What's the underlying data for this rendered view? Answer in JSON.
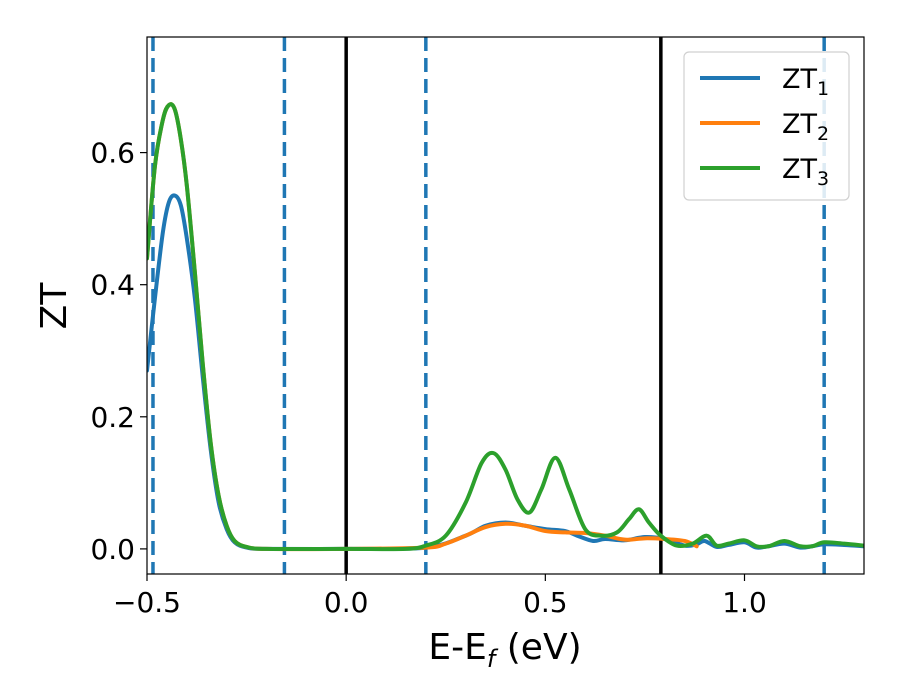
{
  "chart_data": {
    "type": "line",
    "xlabel": "E-E",
    "xlabel_sub": "f",
    "xlabel_unit": " (eV)",
    "ylabel": "ZT",
    "xlim": [
      -0.5,
      1.3
    ],
    "ylim": [
      -0.038,
      0.775
    ],
    "x_ticks": [
      -0.5,
      0.0,
      0.5,
      1.0
    ],
    "x_tick_labels": [
      "−0.5",
      "0.0",
      "0.5",
      "1.0"
    ],
    "y_ticks": [
      0.0,
      0.2,
      0.4,
      0.6
    ],
    "y_tick_labels": [
      "0.0",
      "0.2",
      "0.4",
      "0.6"
    ],
    "grid": false,
    "legend_position": "top-right",
    "vlines_solid": [
      0.0,
      0.79
    ],
    "vlines_dashed": [
      -0.485,
      -0.155,
      0.2,
      1.2
    ],
    "series": [
      {
        "name": "ZT",
        "sub": "1",
        "color": "#1f77b4",
        "x": [
          -0.5,
          -0.48,
          -0.46,
          -0.445,
          -0.43,
          -0.415,
          -0.4,
          -0.38,
          -0.36,
          -0.34,
          -0.32,
          -0.3,
          -0.28,
          -0.25,
          -0.2,
          0.0,
          0.2,
          0.3,
          0.35,
          0.4,
          0.45,
          0.5,
          0.55,
          0.58,
          0.62,
          0.65,
          0.7,
          0.75,
          0.8,
          0.85,
          0.88,
          0.9,
          0.93,
          0.96,
          1.0,
          1.03,
          1.06,
          1.1,
          1.14,
          1.17,
          1.2,
          1.25,
          1.3
        ],
        "y": [
          0.27,
          0.38,
          0.48,
          0.525,
          0.535,
          0.52,
          0.47,
          0.38,
          0.26,
          0.15,
          0.07,
          0.03,
          0.01,
          0.002,
          0.0,
          0.0,
          0.002,
          0.02,
          0.035,
          0.04,
          0.035,
          0.03,
          0.027,
          0.02,
          0.012,
          0.015,
          0.013,
          0.018,
          0.015,
          0.005,
          0.007,
          0.012,
          0.003,
          0.006,
          0.01,
          0.002,
          0.004,
          0.008,
          0.002,
          0.004,
          0.007,
          0.006,
          0.004
        ]
      },
      {
        "name": "ZT",
        "sub": "2",
        "color": "#ff7f0e",
        "x": [
          -0.5,
          -0.48,
          -0.46,
          -0.445,
          -0.43,
          -0.415,
          -0.4,
          -0.38,
          -0.36,
          -0.34,
          -0.32,
          -0.3,
          -0.28,
          -0.25,
          -0.2,
          0.0,
          0.2,
          0.25,
          0.3,
          0.35,
          0.4,
          0.45,
          0.5,
          0.55,
          0.6,
          0.65,
          0.7,
          0.75,
          0.8,
          0.85,
          0.88
        ],
        "y": [
          0.44,
          0.58,
          0.65,
          0.672,
          0.665,
          0.62,
          0.55,
          0.42,
          0.28,
          0.16,
          0.08,
          0.035,
          0.012,
          0.003,
          0.0,
          0.0,
          0.002,
          0.008,
          0.02,
          0.033,
          0.038,
          0.035,
          0.027,
          0.025,
          0.024,
          0.02,
          0.014,
          0.016,
          0.015,
          0.012,
          0.004
        ]
      },
      {
        "name": "ZT",
        "sub": "3",
        "color": "#2ca02c",
        "x": [
          -0.5,
          -0.48,
          -0.46,
          -0.445,
          -0.43,
          -0.415,
          -0.4,
          -0.38,
          -0.36,
          -0.34,
          -0.32,
          -0.3,
          -0.28,
          -0.25,
          -0.2,
          0.0,
          0.15,
          0.2,
          0.25,
          0.3,
          0.34,
          0.37,
          0.4,
          0.43,
          0.46,
          0.49,
          0.525,
          0.56,
          0.6,
          0.64,
          0.68,
          0.71,
          0.735,
          0.76,
          0.79,
          0.83,
          0.87,
          0.905,
          0.93,
          0.96,
          1.0,
          1.03,
          1.06,
          1.1,
          1.14,
          1.17,
          1.2,
          1.25,
          1.3
        ],
        "y": [
          0.44,
          0.58,
          0.65,
          0.672,
          0.665,
          0.62,
          0.55,
          0.42,
          0.28,
          0.16,
          0.08,
          0.035,
          0.012,
          0.003,
          0.0,
          0.0,
          0.0,
          0.005,
          0.02,
          0.07,
          0.13,
          0.145,
          0.12,
          0.075,
          0.055,
          0.09,
          0.138,
          0.09,
          0.03,
          0.02,
          0.025,
          0.045,
          0.06,
          0.04,
          0.02,
          0.005,
          0.008,
          0.02,
          0.005,
          0.008,
          0.013,
          0.004,
          0.004,
          0.012,
          0.004,
          0.004,
          0.01,
          0.008,
          0.005
        ]
      }
    ]
  }
}
